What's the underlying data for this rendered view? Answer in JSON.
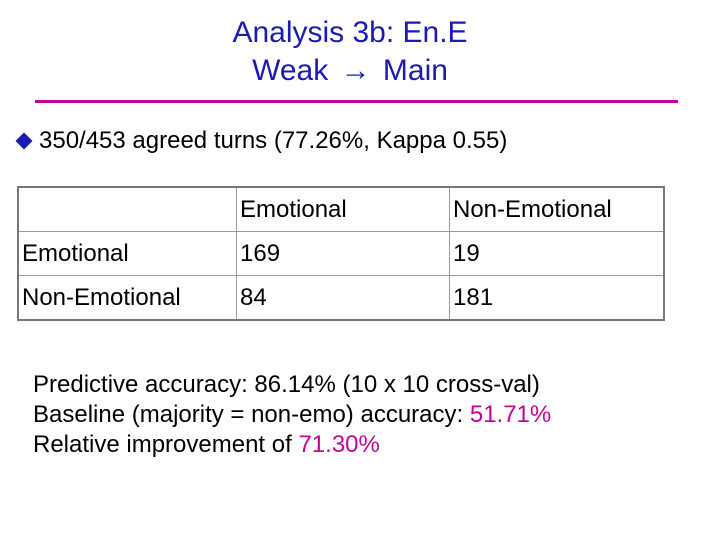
{
  "title": {
    "line1": "Analysis 3b: En.E",
    "line2_prefix": "Weak",
    "line2_arrow": "→",
    "line2_suffix": "Main"
  },
  "bullet": {
    "text": "350/453 agreed turns (77.26%, Kappa 0.55)"
  },
  "table": {
    "header": [
      "",
      "Emotional",
      "Non-Emotional"
    ],
    "rows": [
      [
        "Emotional",
        "169",
        "19"
      ],
      [
        "Non-Emotional",
        "84",
        "181"
      ]
    ]
  },
  "stats": {
    "predictive": "Predictive accuracy: 86.14% (10 x 10 cross-val)",
    "baseline_prefix": "Baseline (majority = non-emo) accuracy: ",
    "baseline_value": "51.71%",
    "improvement_prefix": "Relative improvement of ",
    "improvement_value": "71.30%"
  },
  "colors": {
    "title": "#1a1ab4",
    "accent": "#c2049a",
    "bullet": "#1a1ab4"
  }
}
